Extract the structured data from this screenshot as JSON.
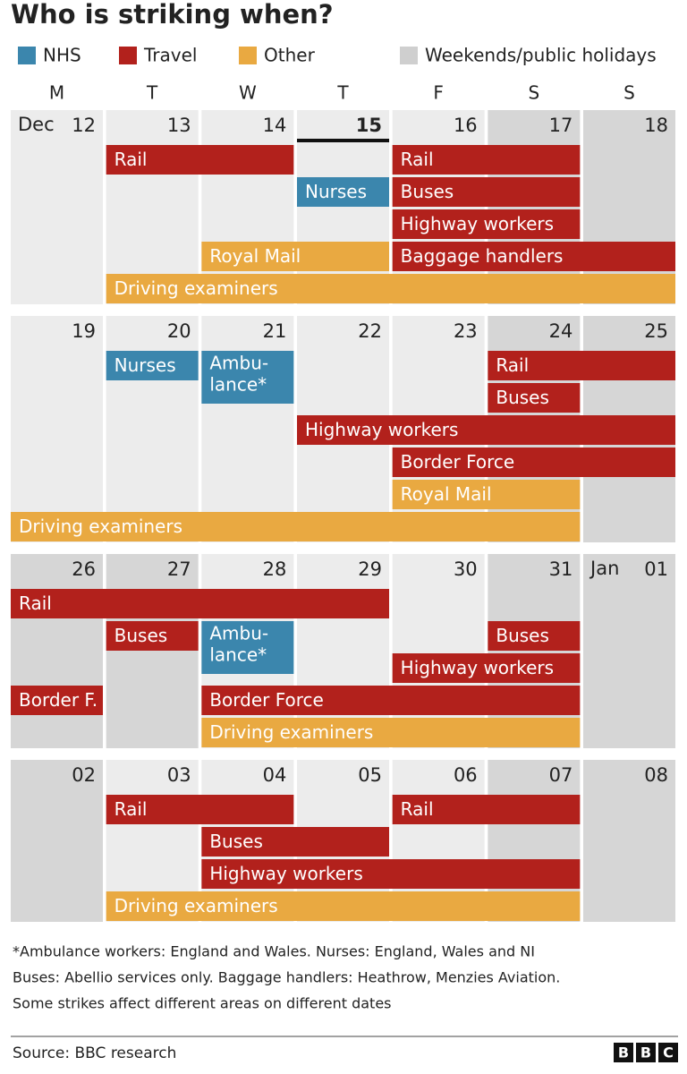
{
  "title": "Who is striking when?",
  "legend": [
    {
      "label": "NHS",
      "color": "#3b86ad"
    },
    {
      "label": "Travel",
      "color": "#b2211c"
    },
    {
      "label": "Other",
      "color": "#e9a941"
    },
    {
      "label": "Weekends/public holidays",
      "color": "#cfcfcf"
    }
  ],
  "weekdays": [
    "M",
    "T",
    "W",
    "T",
    "F",
    "S",
    "S"
  ],
  "weeks": [
    {
      "days": [
        {
          "month": "Dec",
          "date": "12",
          "holiday": false
        },
        {
          "date": "13",
          "holiday": false
        },
        {
          "date": "14",
          "holiday": false
        },
        {
          "date": "15",
          "holiday": false,
          "today": true
        },
        {
          "date": "16",
          "holiday": false
        },
        {
          "date": "17",
          "holiday": true
        },
        {
          "date": "18",
          "holiday": true
        }
      ],
      "bars": [
        {
          "label": "Rail",
          "group": 1,
          "start": 1,
          "end": 2,
          "row": 0
        },
        {
          "label": "Rail",
          "group": 1,
          "start": 4,
          "end": 5,
          "row": 0
        },
        {
          "label": "Nurses",
          "group": 0,
          "start": 3,
          "end": 3,
          "row": 1
        },
        {
          "label": "Buses",
          "group": 1,
          "start": 4,
          "end": 5,
          "row": 1
        },
        {
          "label": "Highway workers",
          "group": 1,
          "start": 4,
          "end": 5,
          "row": 2
        },
        {
          "label": "Royal Mail",
          "group": 2,
          "start": 2,
          "end": 3,
          "row": 3
        },
        {
          "label": "Baggage handlers",
          "group": 1,
          "start": 4,
          "end": 6,
          "row": 3
        },
        {
          "label": "Driving examiners",
          "group": 2,
          "start": 1,
          "end": 6,
          "row": 4
        }
      ]
    },
    {
      "days": [
        {
          "date": "19",
          "holiday": false
        },
        {
          "date": "20",
          "holiday": false
        },
        {
          "date": "21",
          "holiday": false
        },
        {
          "date": "22",
          "holiday": false
        },
        {
          "date": "23",
          "holiday": false
        },
        {
          "date": "24",
          "holiday": true
        },
        {
          "date": "25",
          "holiday": true
        }
      ],
      "bars": [
        {
          "label": "Nurses",
          "group": 0,
          "start": 1,
          "end": 1,
          "row": 0
        },
        {
          "label": [
            "Ambu-",
            "lance*"
          ],
          "group": 0,
          "start": 2,
          "end": 2,
          "row": 0
        },
        {
          "label": "Rail",
          "group": 1,
          "start": 5,
          "end": 6,
          "row": 0
        },
        {
          "label": "Buses",
          "group": 1,
          "start": 5,
          "end": 5,
          "row": 1
        },
        {
          "label": "Highway workers",
          "group": 1,
          "start": 3,
          "end": 6,
          "row": 2
        },
        {
          "label": "Border Force",
          "group": 1,
          "start": 4,
          "end": 6,
          "row": 3
        },
        {
          "label": "Royal Mail",
          "group": 2,
          "start": 4,
          "end": 5,
          "row": 4
        },
        {
          "label": "Driving examiners",
          "group": 2,
          "start": 0,
          "end": 5,
          "row": 5
        }
      ]
    },
    {
      "days": [
        {
          "date": "26",
          "holiday": true
        },
        {
          "date": "27",
          "holiday": true
        },
        {
          "date": "28",
          "holiday": false
        },
        {
          "date": "29",
          "holiday": false
        },
        {
          "date": "30",
          "holiday": false
        },
        {
          "date": "31",
          "holiday": true
        },
        {
          "month": "Jan",
          "date": "01",
          "holiday": true
        }
      ],
      "bars": [
        {
          "label": "Rail",
          "group": 1,
          "start": 0,
          "end": 3,
          "row": 0
        },
        {
          "label": "Buses",
          "group": 1,
          "start": 1,
          "end": 1,
          "row": 1
        },
        {
          "label": [
            "Ambu-",
            "lance*"
          ],
          "group": 0,
          "start": 2,
          "end": 2,
          "row": 1
        },
        {
          "label": "Buses",
          "group": 1,
          "start": 5,
          "end": 5,
          "row": 1
        },
        {
          "label": "Highway workers",
          "group": 1,
          "start": 4,
          "end": 5,
          "row": 2
        },
        {
          "label": "Border F.",
          "group": 1,
          "start": 0,
          "end": 0,
          "row": 3
        },
        {
          "label": "Border Force",
          "group": 1,
          "start": 2,
          "end": 5,
          "row": 3
        },
        {
          "label": "Driving examiners",
          "group": 2,
          "start": 2,
          "end": 5,
          "row": 4
        }
      ]
    },
    {
      "days": [
        {
          "date": "02",
          "holiday": true
        },
        {
          "date": "03",
          "holiday": false
        },
        {
          "date": "04",
          "holiday": false
        },
        {
          "date": "05",
          "holiday": false
        },
        {
          "date": "06",
          "holiday": false
        },
        {
          "date": "07",
          "holiday": true
        },
        {
          "date": "08",
          "holiday": true
        }
      ],
      "bars": [
        {
          "label": "Rail",
          "group": 1,
          "start": 1,
          "end": 2,
          "row": 0
        },
        {
          "label": "Rail",
          "group": 1,
          "start": 4,
          "end": 5,
          "row": 0
        },
        {
          "label": "Buses",
          "group": 1,
          "start": 2,
          "end": 3,
          "row": 1
        },
        {
          "label": "Highway workers",
          "group": 1,
          "start": 2,
          "end": 5,
          "row": 2
        },
        {
          "label": "Driving examiners",
          "group": 2,
          "start": 1,
          "end": 5,
          "row": 3
        }
      ]
    }
  ],
  "notes": [
    "*Ambulance workers: England and Wales. Nurses: England, Wales and NI",
    "Buses: Abellio services only. Baggage handlers: Heathrow, Menzies Aviation.",
    "Some strikes affect different areas on different dates"
  ],
  "source": "Source: BBC research",
  "logo": [
    "B",
    "B",
    "C"
  ]
}
